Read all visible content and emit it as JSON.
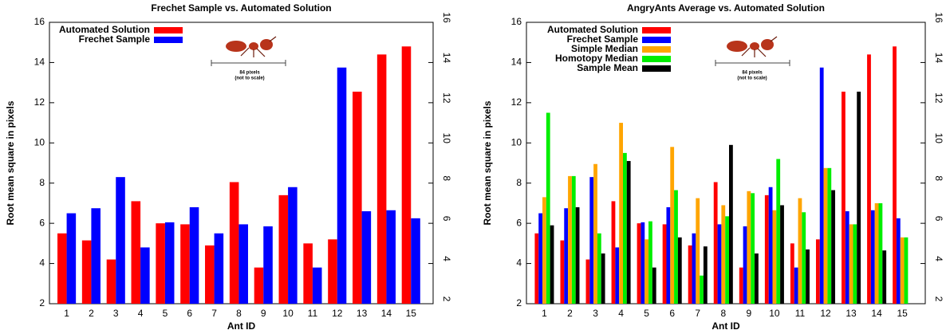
{
  "chart_data": [
    {
      "type": "bar",
      "title": "Frechet Sample vs. Automated Solution",
      "x_label": "Ant ID",
      "y_label": "Root mean square in pixels",
      "annotation": "84 pixels",
      "annotation_note": "(not to scale)",
      "categories": [
        "1",
        "2",
        "3",
        "4",
        "5",
        "6",
        "7",
        "8",
        "9",
        "10",
        "11",
        "12",
        "13",
        "14",
        "15"
      ],
      "series": [
        {
          "name": "Automated Solution",
          "color": "#ff0000",
          "values": [
            5.5,
            5.15,
            4.2,
            7.1,
            6.0,
            5.95,
            4.9,
            8.05,
            3.8,
            7.4,
            5.0,
            5.2,
            12.55,
            14.4,
            14.8
          ]
        },
        {
          "name": "Frechet Sample",
          "color": "#0000ff",
          "values": [
            6.5,
            6.75,
            8.3,
            4.8,
            6.05,
            6.8,
            5.5,
            5.95,
            5.85,
            7.8,
            3.8,
            13.75,
            6.6,
            6.65,
            6.25
          ]
        }
      ],
      "ylim": [
        2,
        16
      ],
      "yticks": [
        2,
        4,
        6,
        8,
        10,
        12,
        14,
        16
      ],
      "y2lim": [
        2,
        16
      ],
      "y2ticks": [
        2,
        4,
        6,
        8,
        10,
        12,
        14,
        16
      ],
      "legend": "top-left",
      "grid": false
    },
    {
      "type": "bar",
      "title": "AngryAnts Average vs. Automated Solution",
      "x_label": "Ant ID",
      "y_label": "Root mean square in pixels",
      "annotation": "84 pixels",
      "annotation_note": "(not to scale)",
      "categories": [
        "1",
        "2",
        "3",
        "4",
        "5",
        "6",
        "7",
        "8",
        "9",
        "10",
        "11",
        "12",
        "13",
        "14",
        "15"
      ],
      "series": [
        {
          "name": "Automated Solution",
          "color": "#ff0000",
          "values": [
            5.5,
            5.15,
            4.2,
            7.1,
            6.0,
            5.95,
            4.9,
            8.05,
            3.8,
            7.4,
            5.0,
            5.2,
            12.55,
            14.4,
            14.8
          ]
        },
        {
          "name": "Frechet Sample",
          "color": "#0000ff",
          "values": [
            6.5,
            6.75,
            8.3,
            4.8,
            6.05,
            6.8,
            5.5,
            5.95,
            5.85,
            7.8,
            3.8,
            13.75,
            6.6,
            6.65,
            6.25
          ]
        },
        {
          "name": "Simple Median",
          "color": "#ffa500",
          "values": [
            7.3,
            8.35,
            8.95,
            11.0,
            5.2,
            9.8,
            7.25,
            6.9,
            7.6,
            6.65,
            7.25,
            8.75,
            5.95,
            7.0,
            5.3
          ]
        },
        {
          "name": "Homotopy Median",
          "color": "#00ee00",
          "values": [
            11.5,
            8.35,
            5.5,
            9.5,
            6.1,
            7.65,
            3.4,
            6.35,
            7.5,
            9.2,
            6.55,
            8.75,
            5.95,
            7.0,
            5.3
          ]
        },
        {
          "name": "Sample Mean",
          "color": "#000000",
          "values": [
            5.9,
            6.8,
            4.5,
            9.1,
            3.8,
            5.3,
            4.85,
            9.9,
            4.5,
            6.9,
            4.7,
            7.65,
            12.55,
            4.65,
            null
          ]
        }
      ],
      "ylim": [
        2,
        16
      ],
      "yticks": [
        2,
        4,
        6,
        8,
        10,
        12,
        14,
        16
      ],
      "y2lim": [
        2,
        16
      ],
      "y2ticks": [
        2,
        4,
        6,
        8,
        10,
        12,
        14,
        16
      ],
      "legend": "top-left",
      "grid": false
    }
  ]
}
